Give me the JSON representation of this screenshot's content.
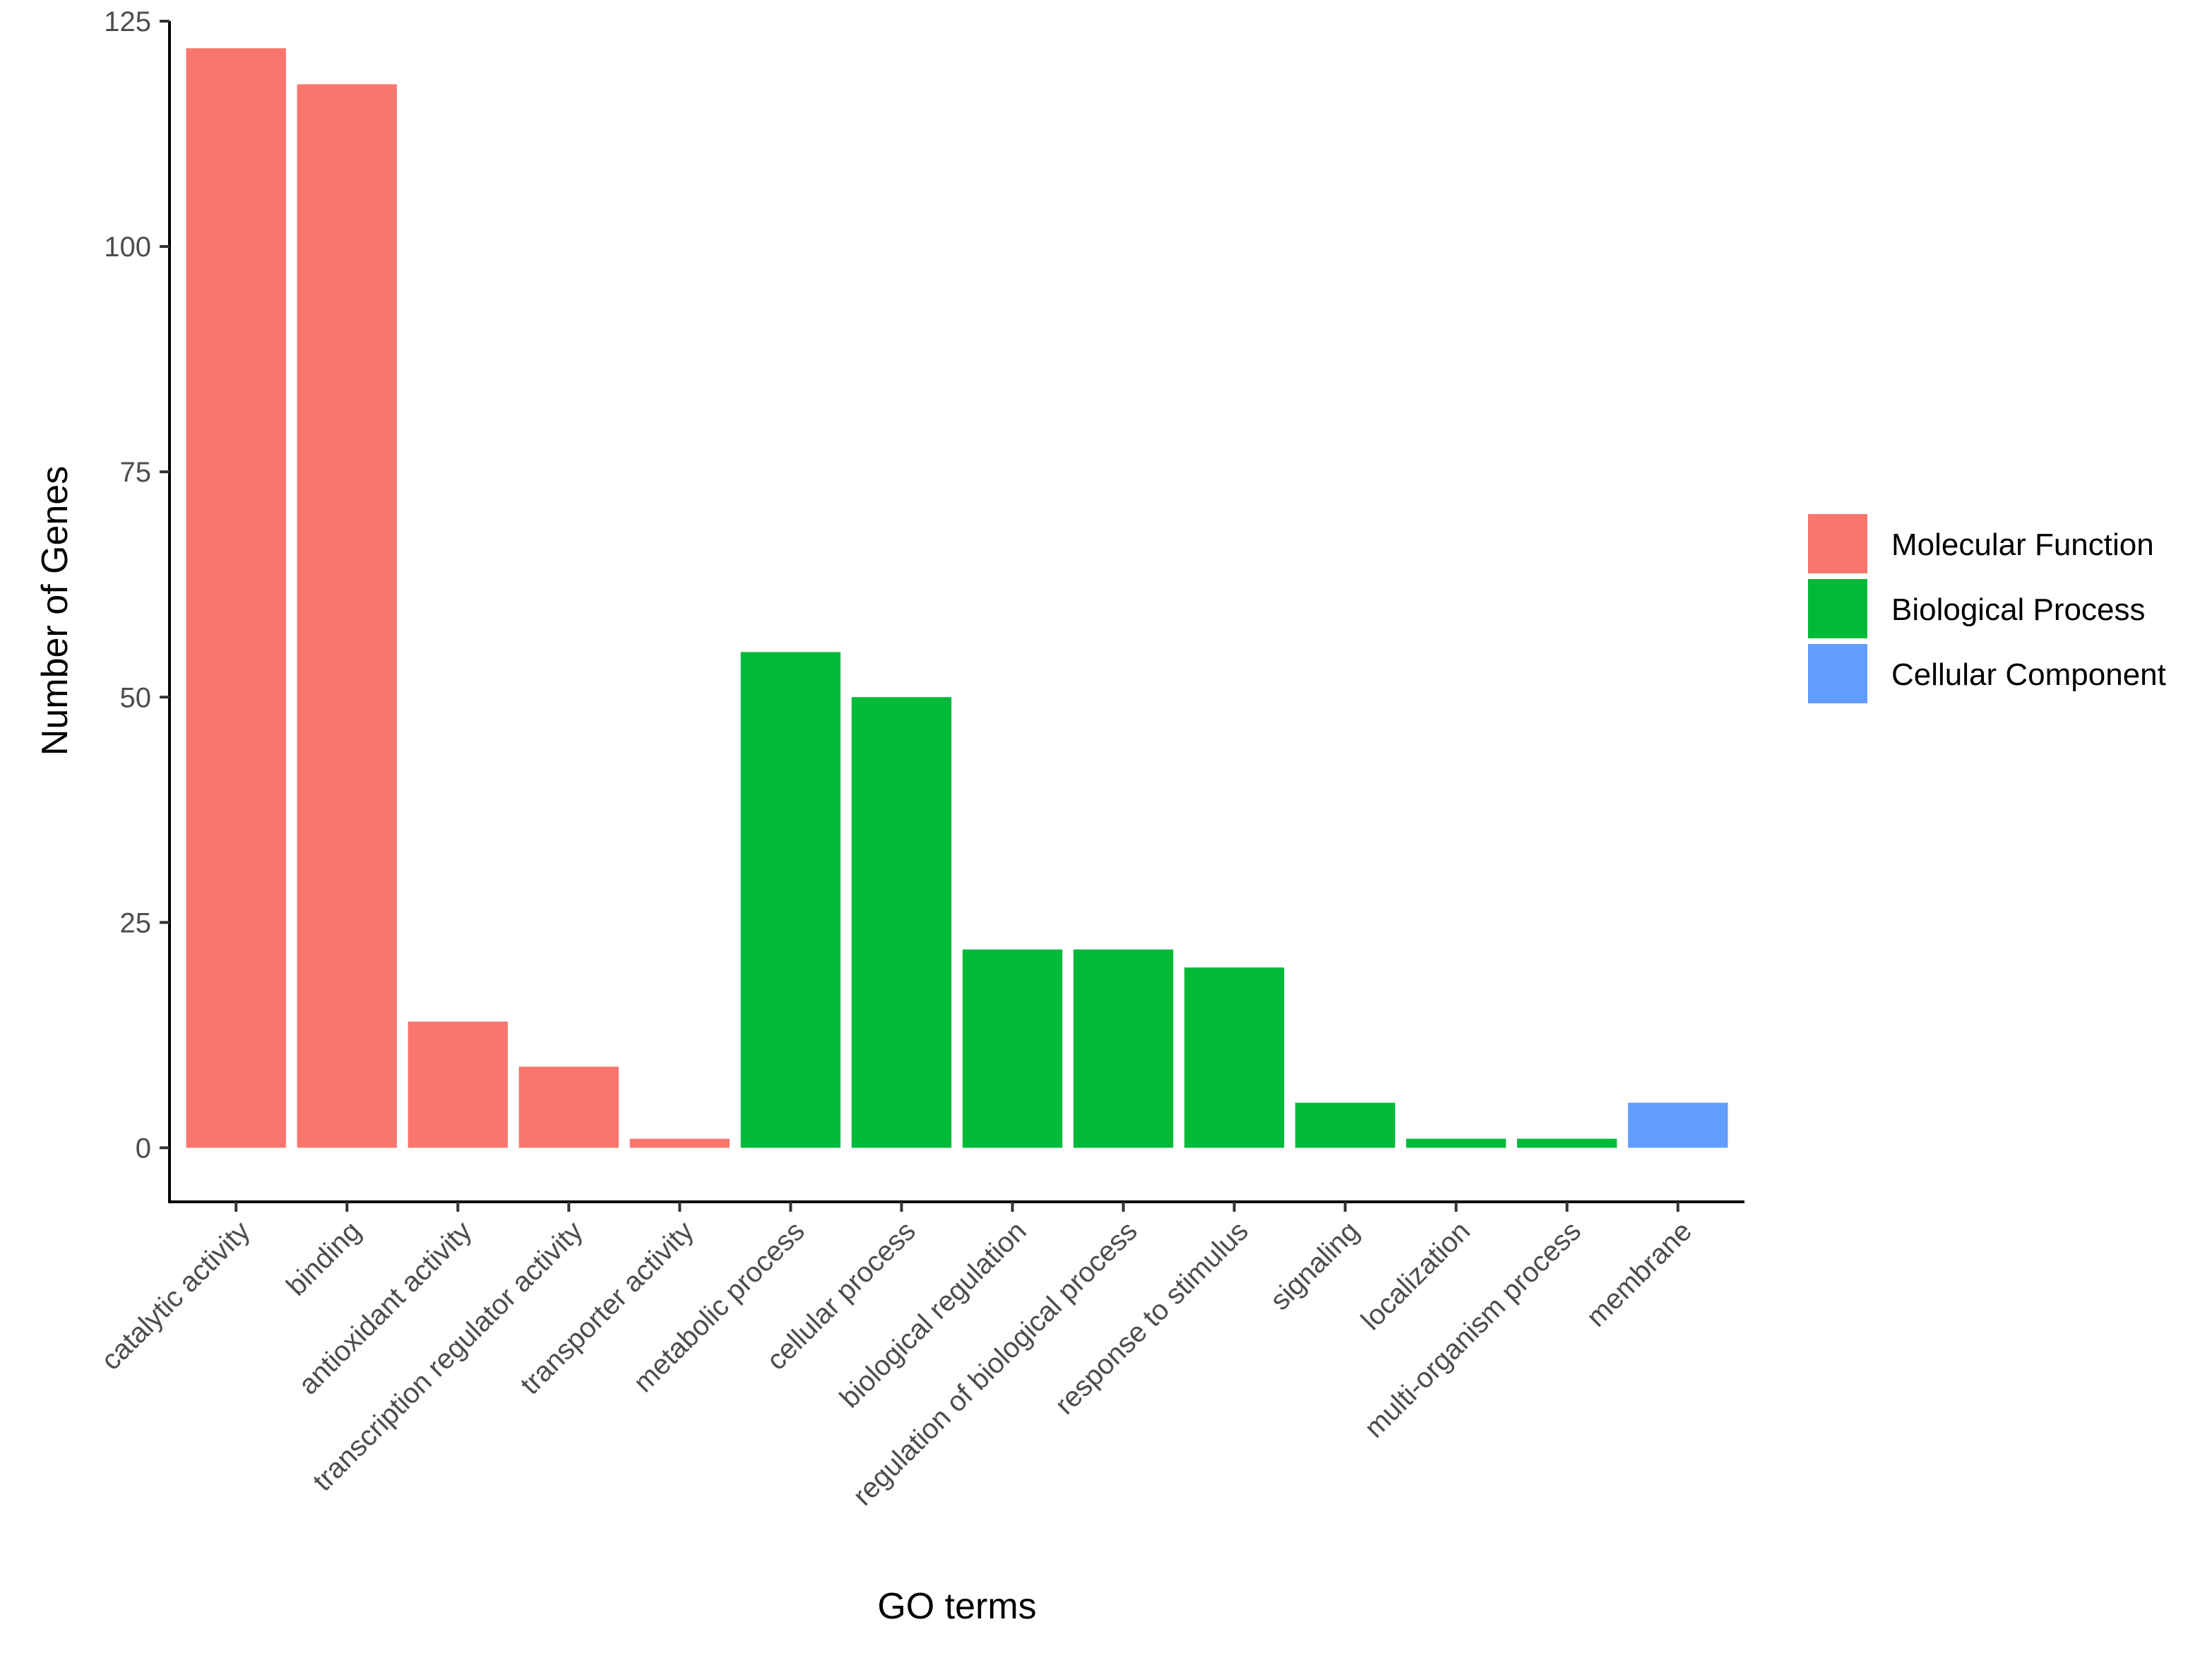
{
  "chart_data": {
    "type": "bar",
    "xlabel": "GO terms",
    "ylabel": "Number of Genes",
    "ylim": [
      -6,
      125
    ],
    "yticks": [
      0,
      25,
      50,
      75,
      100,
      125
    ],
    "grid": false,
    "legend_position": "right",
    "categories": [
      "catalytic activity",
      "binding",
      "antioxidant activity",
      "transcription regulator activity",
      "transporter activity",
      "metabolic process",
      "cellular process",
      "biological regulation",
      "regulation of biological process",
      "response to stimulus",
      "signaling",
      "localization",
      "multi-organism process",
      "membrane"
    ],
    "values": [
      122,
      118,
      14,
      9,
      1,
      55,
      50,
      22,
      22,
      20,
      5,
      1,
      1,
      5
    ],
    "groups": [
      "Molecular Function",
      "Molecular Function",
      "Molecular Function",
      "Molecular Function",
      "Molecular Function",
      "Biological Process",
      "Biological Process",
      "Biological Process",
      "Biological Process",
      "Biological Process",
      "Biological Process",
      "Biological Process",
      "Biological Process",
      "Cellular Component"
    ],
    "legend": [
      {
        "name": "Molecular Function",
        "color": "#F8766D"
      },
      {
        "name": "Biological Process",
        "color": "#00BA38"
      },
      {
        "name": "Cellular Component",
        "color": "#619CFF"
      }
    ]
  }
}
